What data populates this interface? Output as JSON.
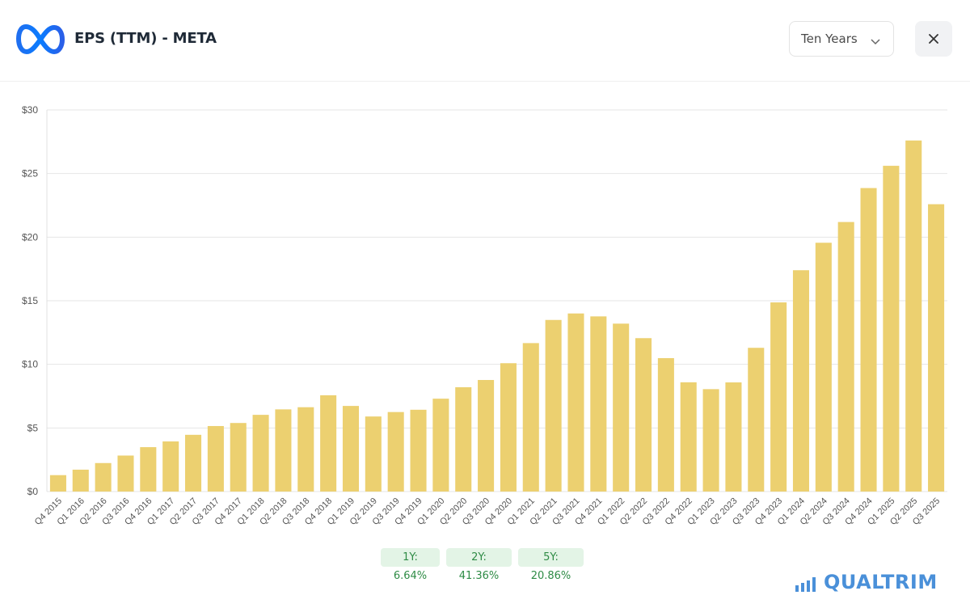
{
  "header": {
    "title": "EPS (TTM) - META",
    "logo_icon": "meta-infinity-logo-icon",
    "range_select": {
      "value": "Ten Years",
      "icon": "chevron-down-icon"
    },
    "close_icon": "close-icon"
  },
  "chart_data": {
    "type": "bar",
    "title": "EPS (TTM) - META",
    "xlabel": "",
    "ylabel": "",
    "ylim": [
      0,
      30
    ],
    "yticks": [
      0,
      5,
      10,
      15,
      20,
      25,
      30
    ],
    "ytick_labels": [
      "$0",
      "$5",
      "$10",
      "$15",
      "$20",
      "$25",
      "$30"
    ],
    "grid": true,
    "bar_color": "#ecd070",
    "categories": [
      "Q4 2015",
      "Q1 2016",
      "Q2 2016",
      "Q3 2016",
      "Q4 2016",
      "Q1 2017",
      "Q2 2017",
      "Q3 2017",
      "Q4 2017",
      "Q1 2018",
      "Q2 2018",
      "Q3 2018",
      "Q4 2018",
      "Q1 2019",
      "Q2 2019",
      "Q3 2019",
      "Q4 2019",
      "Q1 2020",
      "Q2 2020",
      "Q3 2020",
      "Q4 2020",
      "Q1 2021",
      "Q2 2021",
      "Q3 2021",
      "Q4 2021",
      "Q1 2022",
      "Q2 2022",
      "Q3 2022",
      "Q4 2022",
      "Q1 2023",
      "Q2 2023",
      "Q3 2023",
      "Q4 2023",
      "Q1 2024",
      "Q2 2024",
      "Q3 2024",
      "Q4 2024",
      "Q1 2025",
      "Q2 2025",
      "Q3 2025"
    ],
    "values": [
      1.29,
      1.72,
      2.24,
      2.83,
      3.49,
      3.94,
      4.46,
      5.15,
      5.39,
      6.03,
      6.46,
      6.63,
      7.57,
      6.73,
      5.9,
      6.25,
      6.43,
      7.3,
      8.2,
      8.77,
      10.09,
      11.67,
      13.49,
      14.0,
      13.77,
      13.2,
      12.06,
      10.49,
      8.59,
      8.05,
      8.58,
      11.3,
      14.87,
      17.4,
      19.56,
      21.19,
      23.86,
      25.61,
      27.6,
      22.59
    ]
  },
  "growth_badges": [
    {
      "label": "1Y: 6.64%"
    },
    {
      "label": "2Y: 41.36%"
    },
    {
      "label": "5Y: 20.86%"
    }
  ],
  "brand": {
    "name": "QUALTRIM",
    "icon": "bar-signal-icon",
    "color": "#4a90d9"
  }
}
